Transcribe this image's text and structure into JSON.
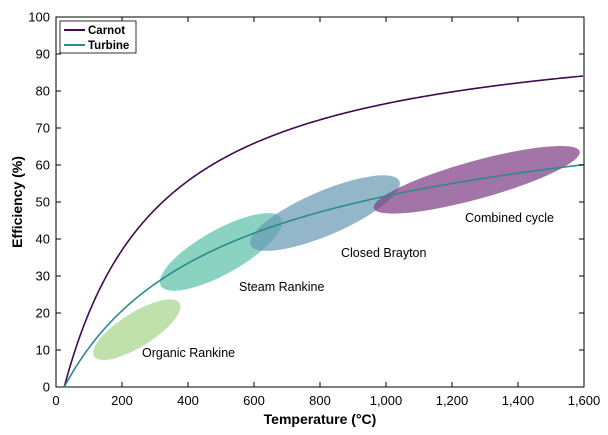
{
  "chart_data": {
    "type": "line",
    "xlabel": "Temperature (°C)",
    "ylabel": "Efficiency (%)",
    "xlim": [
      0,
      1600
    ],
    "ylim": [
      0,
      100
    ],
    "x_ticks": [
      0,
      200,
      400,
      600,
      800,
      1000,
      1200,
      1400,
      1600
    ],
    "x_tick_labels": [
      "0",
      "200",
      "400",
      "600",
      "800",
      "1,000",
      "1,200",
      "1,400",
      "1,600"
    ],
    "y_ticks": [
      0,
      10,
      20,
      30,
      40,
      50,
      60,
      70,
      80,
      90,
      100
    ],
    "y_tick_labels": [
      "0",
      "10",
      "20",
      "30",
      "40",
      "50",
      "60",
      "70",
      "80",
      "90",
      "100"
    ],
    "cold_reservoir_c": 25,
    "series": [
      {
        "name": "Carnot",
        "color": "#3f0a4f",
        "formula": "1 - (T_cold+273.15)/(T+273.15)"
      },
      {
        "name": "Turbine",
        "color": "#2a8c8c",
        "formula": "1 - sqrt((T_cold+273.15)/(T+273.15))"
      }
    ],
    "legend": {
      "position": "top-left",
      "entries": [
        "Carnot",
        "Turbine"
      ]
    },
    "regions": [
      {
        "name": "Organic Rankine",
        "color": "#a8d68a",
        "x_range": [
          110,
          380
        ],
        "y_range": [
          8,
          23
        ]
      },
      {
        "name": "Steam Rankine",
        "color": "#5cc2a8",
        "x_range": [
          310,
          690
        ],
        "y_range": [
          27,
          46
        ]
      },
      {
        "name": "Closed Brayton",
        "color": "#6b9ab4",
        "x_range": [
          580,
          1050
        ],
        "y_range": [
          38,
          56
        ]
      },
      {
        "name": "Combined cycle",
        "color": "#7e3f86",
        "x_range": [
          950,
          1600
        ],
        "y_range": [
          48,
          64
        ]
      }
    ]
  }
}
